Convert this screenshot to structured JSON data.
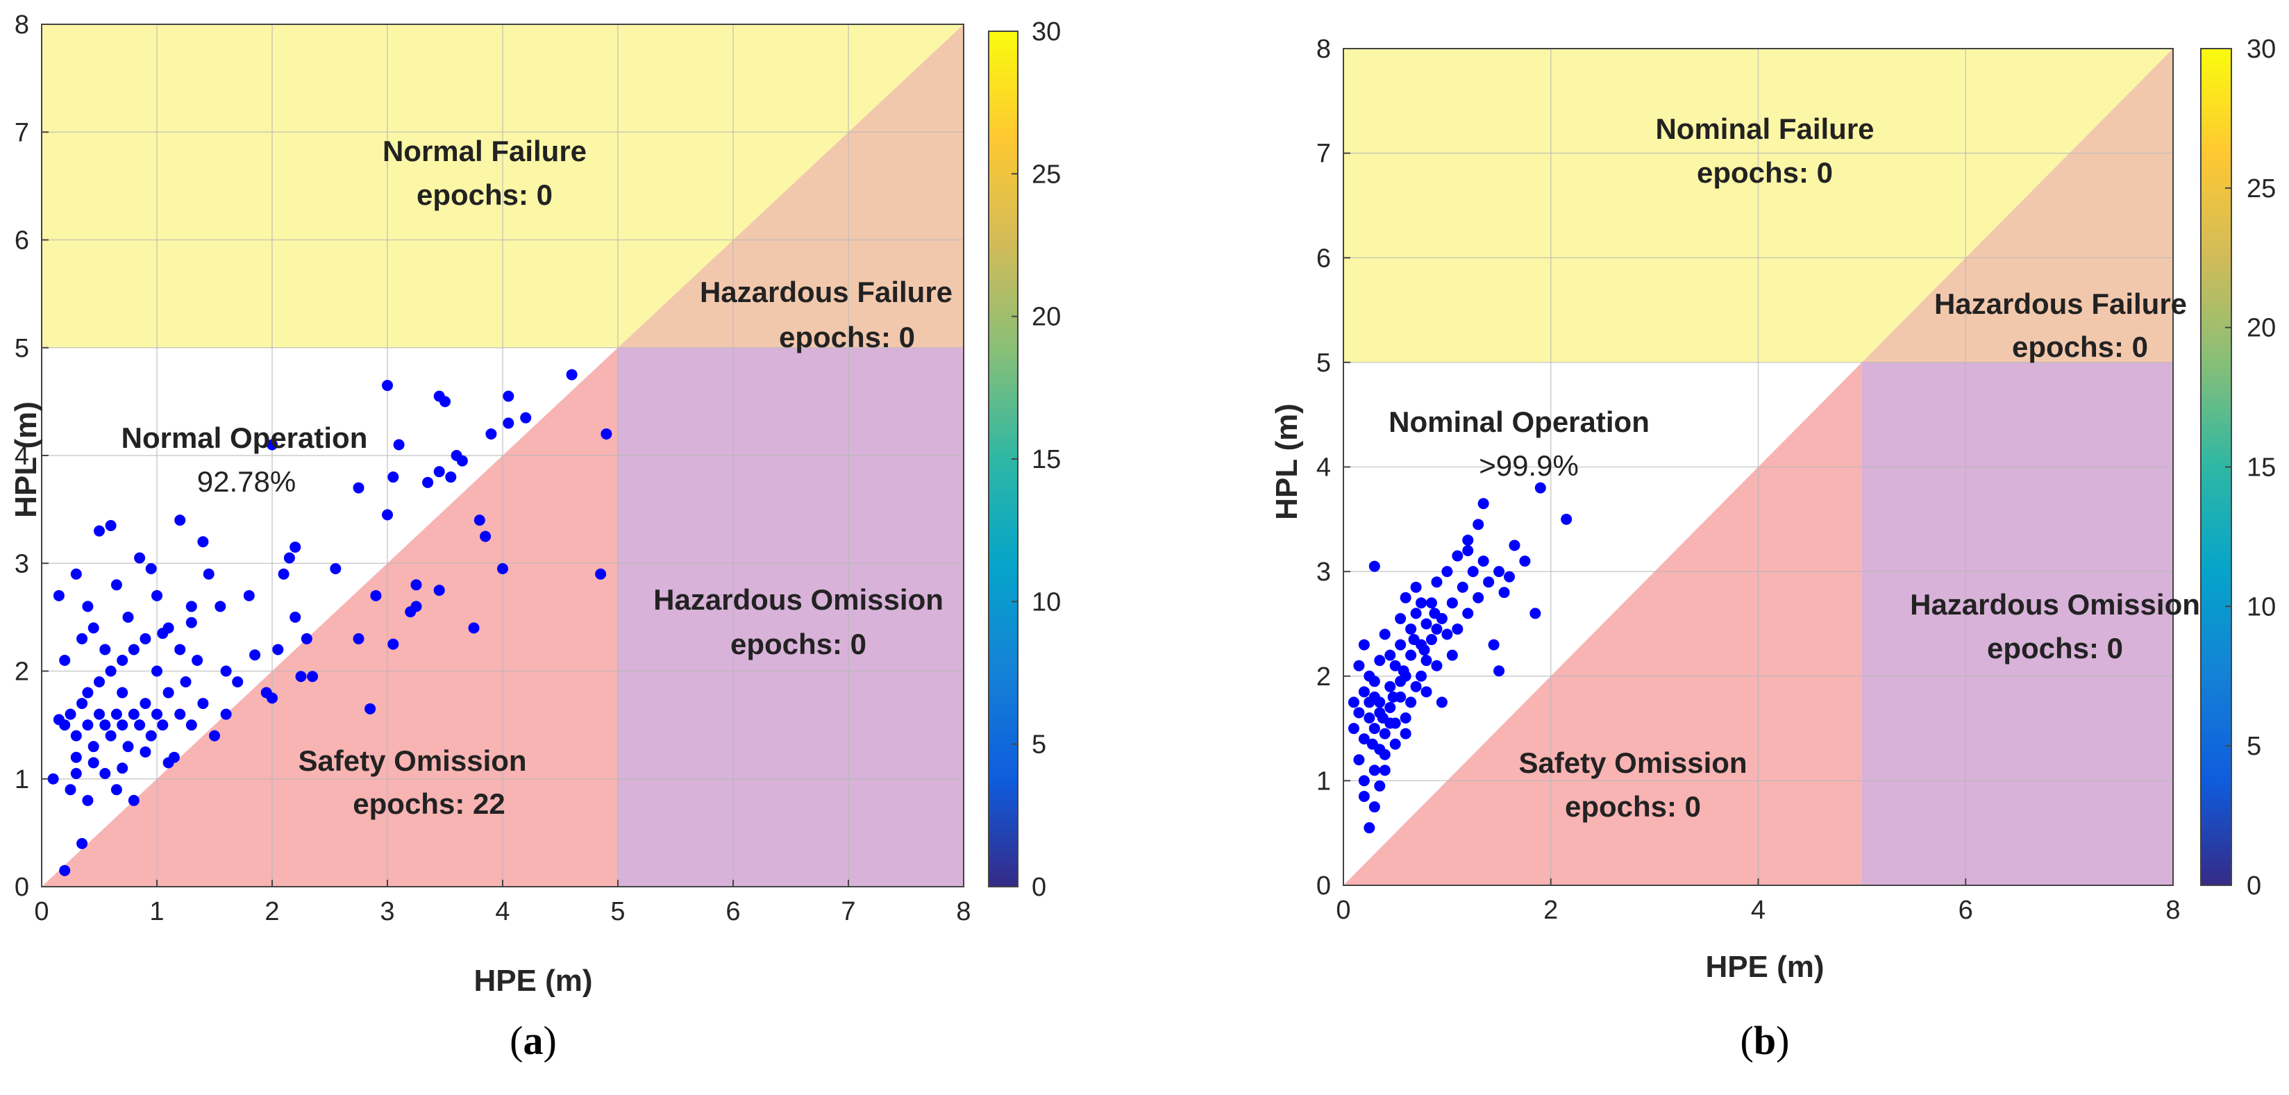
{
  "panels": [
    {
      "caption_letter": "a",
      "regions": {
        "failure": {
          "name": "Normal Failure",
          "epochs": "epochs: 0"
        },
        "hazardous_failure": {
          "name": "Hazardous Failure",
          "epochs": "epochs: 0"
        },
        "operation": {
          "name": "Normal Operation",
          "value": "92.78%"
        },
        "hazardous_omission": {
          "name": "Hazardous Omission",
          "epochs": "epochs: 0"
        },
        "safety_omission": {
          "name": "Safety Omission",
          "epochs": "epochs: 22"
        }
      }
    },
    {
      "caption_letter": "b",
      "regions": {
        "failure": {
          "name": "Nominal Failure",
          "epochs": "epochs: 0"
        },
        "hazardous_failure": {
          "name": "Hazardous Failure",
          "epochs": "epochs: 0"
        },
        "operation": {
          "name": "Nominal Operation",
          "value": ">99.9%"
        },
        "hazardous_omission": {
          "name": "Hazardous Omission",
          "epochs": "epochs: 0"
        },
        "safety_omission": {
          "name": "Safety Omission",
          "epochs": "epochs: 0"
        }
      }
    }
  ],
  "colors": {
    "failure": "#fbf7a6",
    "hazardous_failure": "#f2c8ad",
    "safety_omission": "#f8b3b3",
    "hazardous_omission": "#d8b2d8",
    "operation": "#ffffff",
    "points": "#0000ff",
    "grid": "#b8b8b8",
    "parula": [
      "#352a87",
      "#0f5cdd",
      "#1481d6",
      "#06a4ca",
      "#2eb7a4",
      "#87bf77",
      "#d1bb59",
      "#fec832",
      "#f9fb0e"
    ]
  },
  "chart_data": [
    {
      "type": "scatter",
      "xlabel": "HPE (m)",
      "ylabel": "HPL (m)",
      "xlim": [
        0,
        8
      ],
      "ylim": [
        0,
        8
      ],
      "xticks": [
        "0",
        "1",
        "2",
        "3",
        "4",
        "5",
        "6",
        "7",
        "8"
      ],
      "yticks": [
        "0",
        "1",
        "2",
        "3",
        "4",
        "5",
        "6",
        "7",
        "8"
      ],
      "alert_limit": 5,
      "grid": true,
      "colorbar": {
        "range": [
          0,
          30
        ],
        "ticks": [
          "0",
          "5",
          "10",
          "15",
          "20",
          "25",
          "30"
        ],
        "colormap": "parula"
      },
      "points": [
        [
          0.2,
          0.15
        ],
        [
          0.35,
          0.4
        ],
        [
          0.1,
          1.0
        ],
        [
          0.15,
          1.55
        ],
        [
          0.2,
          1.5
        ],
        [
          0.25,
          1.6
        ],
        [
          0.3,
          1.4
        ],
        [
          0.3,
          1.2
        ],
        [
          0.35,
          1.7
        ],
        [
          0.4,
          1.5
        ],
        [
          0.4,
          1.8
        ],
        [
          0.45,
          1.3
        ],
        [
          0.5,
          1.6
        ],
        [
          0.5,
          1.9
        ],
        [
          0.55,
          1.5
        ],
        [
          0.6,
          1.4
        ],
        [
          0.6,
          2.0
        ],
        [
          0.65,
          1.6
        ],
        [
          0.7,
          1.5
        ],
        [
          0.7,
          1.8
        ],
        [
          0.75,
          1.3
        ],
        [
          0.8,
          1.6
        ],
        [
          0.8,
          2.2
        ],
        [
          0.85,
          1.5
        ],
        [
          0.9,
          1.7
        ],
        [
          0.95,
          1.4
        ],
        [
          1.0,
          1.6
        ],
        [
          1.0,
          2.0
        ],
        [
          1.05,
          1.5
        ],
        [
          1.1,
          1.8
        ],
        [
          1.15,
          1.2
        ],
        [
          1.2,
          1.6
        ],
        [
          1.25,
          1.9
        ],
        [
          1.3,
          1.5
        ],
        [
          1.35,
          2.1
        ],
        [
          1.4,
          1.7
        ],
        [
          1.5,
          1.4
        ],
        [
          1.6,
          1.6
        ],
        [
          0.15,
          2.7
        ],
        [
          0.3,
          2.9
        ],
        [
          0.4,
          2.6
        ],
        [
          0.45,
          2.4
        ],
        [
          0.5,
          3.3
        ],
        [
          0.6,
          3.35
        ],
        [
          0.65,
          2.8
        ],
        [
          0.75,
          2.5
        ],
        [
          0.85,
          3.05
        ],
        [
          0.95,
          2.95
        ],
        [
          1.0,
          2.7
        ],
        [
          1.1,
          2.4
        ],
        [
          1.2,
          3.4
        ],
        [
          1.3,
          2.6
        ],
        [
          1.4,
          3.2
        ],
        [
          1.45,
          2.9
        ],
        [
          1.55,
          2.6
        ],
        [
          1.2,
          2.2
        ],
        [
          0.25,
          0.9
        ],
        [
          0.4,
          0.8
        ],
        [
          0.55,
          1.05
        ],
        [
          0.65,
          0.9
        ],
        [
          0.8,
          0.8
        ],
        [
          0.3,
          1.05
        ],
        [
          0.45,
          1.15
        ],
        [
          0.7,
          1.1
        ],
        [
          1.1,
          1.15
        ],
        [
          0.9,
          1.25
        ],
        [
          1.8,
          2.7
        ],
        [
          1.85,
          2.15
        ],
        [
          1.95,
          1.8
        ],
        [
          2.0,
          1.75
        ],
        [
          2.05,
          2.2
        ],
        [
          2.1,
          2.9
        ],
        [
          2.15,
          3.05
        ],
        [
          2.2,
          2.5
        ],
        [
          2.25,
          1.95
        ],
        [
          2.35,
          1.95
        ],
        [
          2.3,
          2.3
        ],
        [
          2.2,
          3.15
        ],
        [
          2.0,
          4.1
        ],
        [
          2.55,
          2.95
        ],
        [
          2.75,
          3.7
        ],
        [
          2.75,
          2.3
        ],
        [
          2.9,
          2.7
        ],
        [
          2.85,
          1.65
        ],
        [
          3.0,
          3.45
        ],
        [
          3.05,
          3.8
        ],
        [
          3.1,
          4.1
        ],
        [
          3.05,
          2.25
        ],
        [
          3.2,
          2.55
        ],
        [
          3.25,
          2.6
        ],
        [
          3.25,
          2.8
        ],
        [
          3.35,
          3.75
        ],
        [
          3.45,
          3.85
        ],
        [
          3.45,
          2.75
        ],
        [
          3.5,
          4.5
        ],
        [
          3.55,
          3.8
        ],
        [
          3.6,
          4.0
        ],
        [
          3.75,
          2.4
        ],
        [
          3.8,
          3.4
        ],
        [
          3.85,
          3.25
        ],
        [
          3.9,
          4.2
        ],
        [
          4.0,
          2.95
        ],
        [
          4.05,
          4.3
        ],
        [
          4.2,
          4.35
        ],
        [
          4.6,
          4.75
        ],
        [
          4.85,
          2.9
        ],
        [
          4.9,
          4.2
        ],
        [
          3.0,
          4.65
        ],
        [
          3.45,
          4.55
        ],
        [
          4.05,
          4.55
        ],
        [
          3.65,
          3.95
        ],
        [
          1.6,
          2.0
        ],
        [
          1.7,
          1.9
        ],
        [
          0.55,
          2.2
        ],
        [
          0.7,
          2.1
        ],
        [
          0.9,
          2.3
        ],
        [
          1.05,
          2.35
        ],
        [
          1.3,
          2.45
        ],
        [
          0.2,
          2.1
        ],
        [
          0.35,
          2.3
        ]
      ]
    },
    {
      "type": "scatter",
      "xlabel": "HPE (m)",
      "ylabel": "HPL (m)",
      "xlim": [
        0,
        8
      ],
      "ylim": [
        0,
        8
      ],
      "xticks": [
        "0",
        "2",
        "4",
        "6",
        "8"
      ],
      "yticks": [
        "0",
        "1",
        "2",
        "3",
        "4",
        "5",
        "6",
        "7",
        "8"
      ],
      "alert_limit": 5,
      "grid": true,
      "colorbar": {
        "range": [
          0,
          30
        ],
        "ticks": [
          "0",
          "5",
          "10",
          "15",
          "20",
          "25",
          "30"
        ],
        "colormap": "parula"
      },
      "points": [
        [
          0.25,
          0.55
        ],
        [
          0.3,
          0.75
        ],
        [
          0.35,
          0.95
        ],
        [
          0.4,
          1.1
        ],
        [
          0.2,
          1.0
        ],
        [
          0.15,
          1.2
        ],
        [
          0.1,
          1.5
        ],
        [
          0.2,
          1.4
        ],
        [
          0.25,
          1.6
        ],
        [
          0.3,
          1.5
        ],
        [
          0.3,
          1.8
        ],
        [
          0.35,
          1.3
        ],
        [
          0.35,
          1.65
        ],
        [
          0.4,
          1.45
        ],
        [
          0.45,
          1.7
        ],
        [
          0.45,
          1.9
        ],
        [
          0.5,
          1.55
        ],
        [
          0.5,
          2.1
        ],
        [
          0.55,
          1.8
        ],
        [
          0.55,
          2.3
        ],
        [
          0.6,
          2.0
        ],
        [
          0.6,
          1.6
        ],
        [
          0.65,
          2.2
        ],
        [
          0.65,
          2.45
        ],
        [
          0.7,
          1.9
        ],
        [
          0.7,
          2.6
        ],
        [
          0.75,
          2.3
        ],
        [
          0.75,
          2.0
        ],
        [
          0.8,
          2.5
        ],
        [
          0.8,
          2.15
        ],
        [
          0.85,
          2.7
        ],
        [
          0.85,
          2.35
        ],
        [
          0.9,
          2.1
        ],
        [
          0.9,
          2.9
        ],
        [
          0.95,
          2.55
        ],
        [
          1.0,
          2.4
        ],
        [
          1.0,
          3.0
        ],
        [
          1.05,
          2.7
        ],
        [
          1.1,
          3.15
        ],
        [
          1.1,
          2.45
        ],
        [
          1.15,
          2.85
        ],
        [
          1.2,
          2.6
        ],
        [
          1.2,
          3.3
        ],
        [
          1.25,
          3.0
        ],
        [
          1.3,
          2.75
        ],
        [
          1.3,
          3.45
        ],
        [
          1.35,
          3.1
        ],
        [
          1.4,
          2.9
        ],
        [
          1.45,
          2.3
        ],
        [
          1.5,
          2.05
        ],
        [
          1.55,
          2.8
        ],
        [
          1.65,
          3.25
        ],
        [
          1.75,
          3.1
        ],
        [
          1.85,
          2.6
        ],
        [
          1.9,
          3.8
        ],
        [
          2.15,
          3.5
        ],
        [
          1.35,
          3.65
        ],
        [
          1.2,
          3.2
        ],
        [
          0.3,
          3.05
        ],
        [
          0.15,
          2.1
        ],
        [
          0.2,
          2.3
        ],
        [
          0.25,
          2.0
        ],
        [
          0.4,
          2.4
        ],
        [
          0.45,
          2.2
        ],
        [
          0.55,
          2.55
        ],
        [
          0.6,
          2.75
        ],
        [
          0.7,
          2.85
        ],
        [
          0.8,
          1.85
        ],
        [
          0.95,
          1.75
        ],
        [
          0.1,
          1.75
        ],
        [
          0.15,
          1.65
        ],
        [
          0.2,
          1.85
        ],
        [
          0.3,
          1.95
        ],
        [
          0.35,
          2.15
        ],
        [
          0.4,
          1.25
        ],
        [
          0.5,
          1.35
        ],
        [
          0.6,
          1.45
        ],
        [
          0.3,
          1.1
        ],
        [
          0.2,
          0.85
        ],
        [
          1.5,
          3.0
        ],
        [
          1.6,
          2.95
        ],
        [
          1.05,
          2.2
        ],
        [
          0.9,
          2.45
        ],
        [
          0.75,
          2.7
        ],
        [
          0.65,
          1.75
        ],
        [
          0.55,
          1.95
        ],
        [
          0.45,
          1.55
        ],
        [
          0.35,
          1.75
        ],
        [
          0.25,
          1.75
        ],
        [
          0.28,
          1.35
        ],
        [
          0.38,
          1.6
        ],
        [
          0.48,
          1.8
        ],
        [
          0.58,
          2.05
        ],
        [
          0.68,
          2.35
        ],
        [
          0.78,
          2.25
        ],
        [
          0.88,
          2.6
        ]
      ]
    }
  ]
}
